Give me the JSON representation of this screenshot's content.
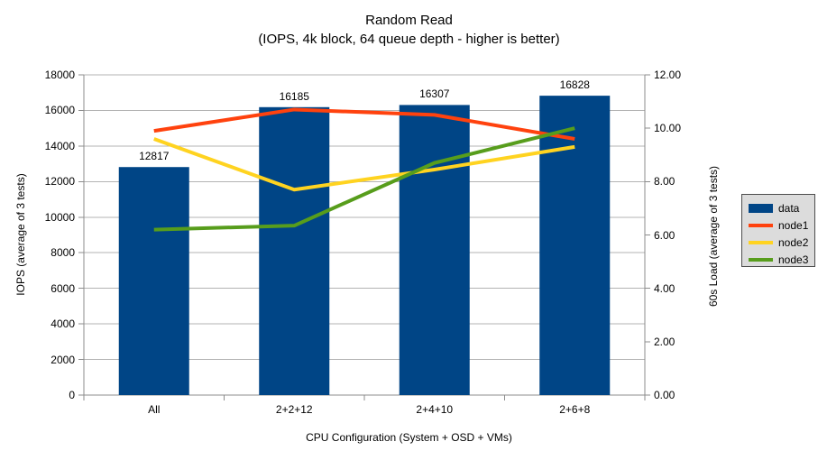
{
  "chart_data": {
    "type": "bar-line-combo",
    "title": "Random Read",
    "subtitle": "(IOPS, 4k block, 64 queue depth - higher is better)",
    "categories": [
      "All",
      "2+2+12",
      "2+4+10",
      "2+6+8"
    ],
    "series": [
      {
        "name": "data",
        "type": "bar",
        "axis": "left",
        "color": "#004586",
        "values": [
          12817,
          16185,
          16307,
          16828
        ],
        "value_labels": [
          "12817",
          "16185",
          "16307",
          "16828"
        ]
      },
      {
        "name": "node1",
        "type": "line",
        "axis": "right",
        "color": "#ff420e",
        "values": [
          9.9,
          10.7,
          10.5,
          9.6
        ]
      },
      {
        "name": "node2",
        "type": "line",
        "axis": "right",
        "color": "#ffd320",
        "values": [
          9.6,
          7.7,
          8.45,
          9.3
        ]
      },
      {
        "name": "node3",
        "type": "line",
        "axis": "right",
        "color": "#579d1c",
        "values": [
          6.2,
          6.35,
          8.7,
          10.0
        ]
      }
    ],
    "left_axis": {
      "label": "IOPS (average of 3 tests)",
      "min": 0,
      "max": 18000,
      "step": 2000,
      "ticks": [
        "0",
        "2000",
        "4000",
        "6000",
        "8000",
        "10000",
        "12000",
        "14000",
        "16000",
        "18000"
      ]
    },
    "right_axis": {
      "label": "60s Load (average of 3 tests)",
      "min": 0,
      "max": 12,
      "step": 2,
      "ticks": [
        "0.00",
        "2.00",
        "4.00",
        "6.00",
        "8.00",
        "10.00",
        "12.00"
      ]
    },
    "x_axis": {
      "label": "CPU Configuration (System + OSD + VMs)"
    },
    "legend": {
      "position": "right",
      "entries": [
        "data",
        "node1",
        "node2",
        "node3"
      ]
    },
    "grid": true,
    "colors": {
      "gridline": "#b3b3b3",
      "axis": "#8c8c8c",
      "text": "#000000",
      "legend_bg": "#dcdcdc",
      "legend_border": "#4d4d4d"
    }
  }
}
